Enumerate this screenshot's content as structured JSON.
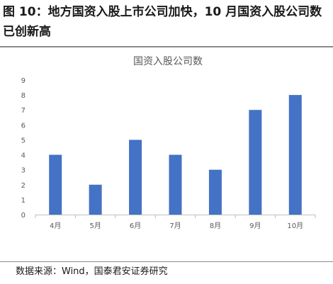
{
  "figure": {
    "title": "图 10：地方国资入股上市公司加快，10 月国资入股公司数已创新高",
    "source": "数据来源：Wind，国泰君安证券研究"
  },
  "colors": {
    "bar": "#4472c4",
    "axis": "#bfbfbf",
    "text": "#595959"
  },
  "chart_data": {
    "type": "bar",
    "title": "国资入股公司数",
    "categories": [
      "4月",
      "5月",
      "6月",
      "7月",
      "8月",
      "9月",
      "10月"
    ],
    "values": [
      4,
      2,
      5,
      4,
      3,
      7,
      8
    ],
    "ylim": [
      0,
      9
    ],
    "yticks": [
      0,
      1,
      2,
      3,
      4,
      5,
      6,
      7,
      8,
      9
    ],
    "xlabel": "",
    "ylabel": "",
    "grid": false,
    "legend": "none"
  }
}
